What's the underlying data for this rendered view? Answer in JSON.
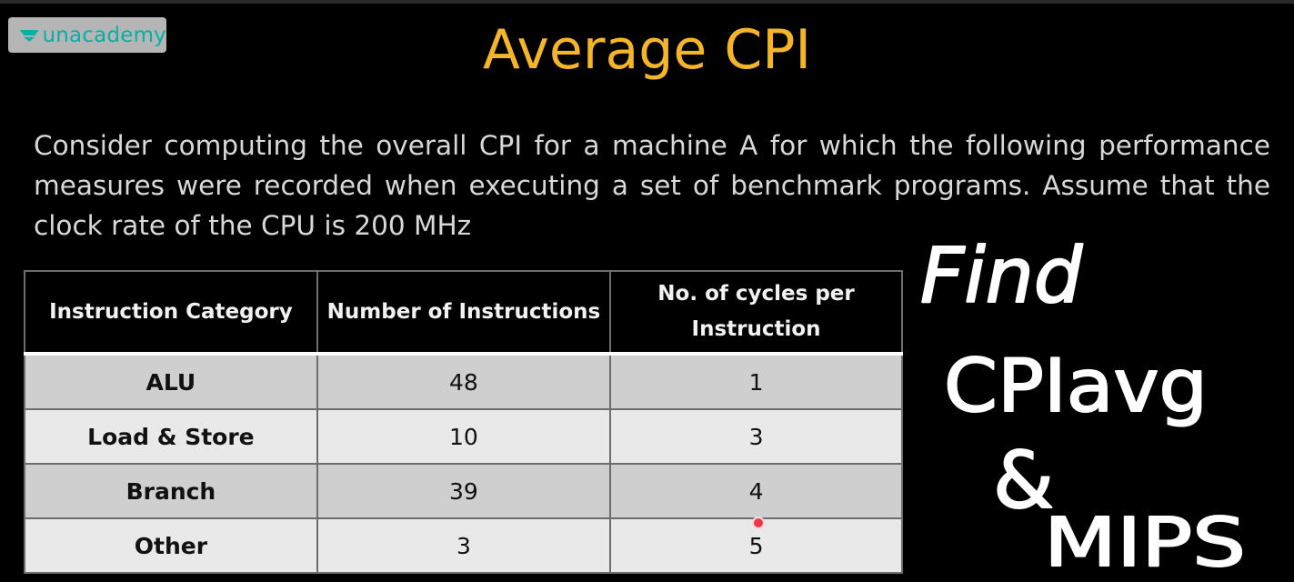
{
  "brand": {
    "name": "unacademy",
    "color": "#08b0a4"
  },
  "slide": {
    "title": "Average CPI",
    "intro": "Consider computing the overall CPI for a machine A for which the following performance measures were recorded when executing a set of benchmark programs. Assume that the clock rate of the CPU is 200 MHz"
  },
  "table": {
    "headers": [
      "Instruction Category",
      "Number of Instructions",
      "No. of cycles per Instruction"
    ],
    "rows": [
      [
        "ALU",
        "48",
        "1"
      ],
      [
        "Load & Store",
        "10",
        "3"
      ],
      [
        "Branch",
        "39",
        "4"
      ],
      [
        "Other",
        "3",
        "5"
      ]
    ]
  },
  "annotation": {
    "lines": [
      "Find",
      "CPIavg",
      "&",
      "MIPS"
    ]
  },
  "colors": {
    "title": "#f5b529",
    "body_text": "#d8d8d8",
    "row_dark": "#cfcfcf",
    "row_light": "#e9e9e9",
    "pointer": "#e8384a"
  }
}
